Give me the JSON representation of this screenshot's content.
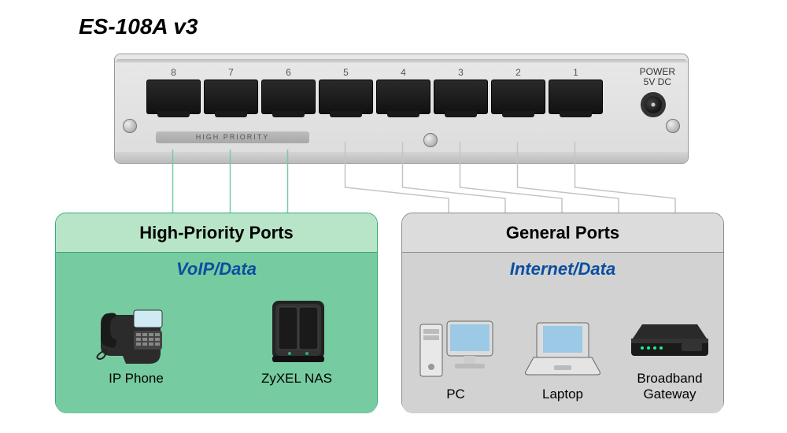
{
  "title": "ES-108A v3",
  "switch": {
    "port_numbers": [
      "8",
      "7",
      "6",
      "5",
      "4",
      "3",
      "2",
      "1"
    ],
    "high_priority_label": "HIGH PRIORITY",
    "power_label_line1": "POWER",
    "power_label_line2": "5V DC",
    "body_color": "#dcdcdc",
    "port_color": "#1a1a1a"
  },
  "connectors": {
    "high_priority_lines": {
      "color": "#76cba0",
      "stroke_width": 1.5,
      "port_indices": [
        0,
        1,
        2
      ]
    },
    "general_lines": {
      "color": "#c4c4c4",
      "stroke_width": 1.5,
      "port_indices": [
        3,
        4,
        5,
        6,
        7
      ]
    }
  },
  "left_box": {
    "title": "High-Priority Ports",
    "subtitle": "VoIP/Data",
    "border_color": "#3aa87a",
    "header_bg": "#b8e5c8",
    "body_bg": "#76cba0",
    "subtitle_color": "#0a4fa0",
    "devices": [
      {
        "label": "IP Phone",
        "icon": "ip-phone"
      },
      {
        "label": "ZyXEL NAS",
        "icon": "nas"
      }
    ]
  },
  "right_box": {
    "title": "General Ports",
    "subtitle": "Internet/Data",
    "border_color": "#8c8c8c",
    "header_bg": "#dcdcdc",
    "body_bg": "#d2d2d2",
    "subtitle_color": "#0a4fa0",
    "devices": [
      {
        "label": "PC",
        "icon": "pc"
      },
      {
        "label": "Laptop",
        "icon": "laptop"
      },
      {
        "label": "Broadband\nGateway",
        "icon": "gateway"
      }
    ]
  },
  "typography": {
    "title_fontsize": 28,
    "box_title_fontsize": 22,
    "subtitle_fontsize": 22,
    "device_label_fontsize": 17
  }
}
